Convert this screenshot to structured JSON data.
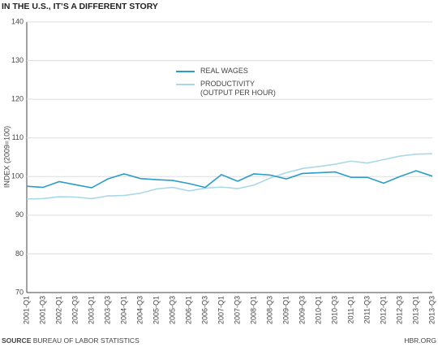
{
  "chart_data": {
    "type": "line",
    "title": "IN THE U.S., IT’S A DIFFERENT STORY",
    "y_label": "INDEX (2009=100)",
    "categories": [
      "2001-Q1",
      "2001-Q3",
      "2002-Q1",
      "2002-Q3",
      "2003-Q1",
      "2003-Q3",
      "2004-Q1",
      "2004-Q3",
      "2005-Q1",
      "2005-Q3",
      "2006-Q1",
      "2006-Q3",
      "2007-Q1",
      "2007-Q3",
      "2008-Q1",
      "2008-Q3",
      "2009-Q1",
      "2009-Q3",
      "2010-Q1",
      "2010-Q3",
      "2011-Q1",
      "2011-Q3",
      "2012-Q1",
      "2012-Q3",
      "2013-Q1",
      "2013-Q3"
    ],
    "series": [
      {
        "name": "REAL WAGES",
        "color": "#2a9dc8",
        "values": [
          97.5,
          97.2,
          98.7,
          97.9,
          97.1,
          99.4,
          100.7,
          99.5,
          99.2,
          99.0,
          98.2,
          97.2,
          100.5,
          98.8,
          100.7,
          100.4,
          99.4,
          100.8,
          101.0,
          101.2,
          99.8,
          99.8,
          98.3,
          100.0,
          101.5,
          100.1
        ]
      },
      {
        "name": "PRODUCTIVITY\n(OUTPUT PER HOUR)",
        "color": "#aad8ea",
        "values": [
          94.2,
          94.3,
          94.8,
          94.7,
          94.3,
          95.0,
          95.1,
          95.7,
          96.8,
          97.2,
          96.3,
          97.0,
          97.3,
          96.9,
          97.8,
          99.6,
          101.0,
          102.1,
          102.6,
          103.2,
          104.0,
          103.5,
          104.4,
          105.3,
          105.8,
          105.9
        ]
      }
    ],
    "ylim": [
      70,
      140
    ],
    "yticks": [
      70,
      80,
      90,
      100,
      110,
      120,
      130,
      140
    ],
    "grid": true,
    "source_label": "SOURCE",
    "source": "BUREAU OF LABOR STATISTICS",
    "credit": "HBR.ORG"
  }
}
